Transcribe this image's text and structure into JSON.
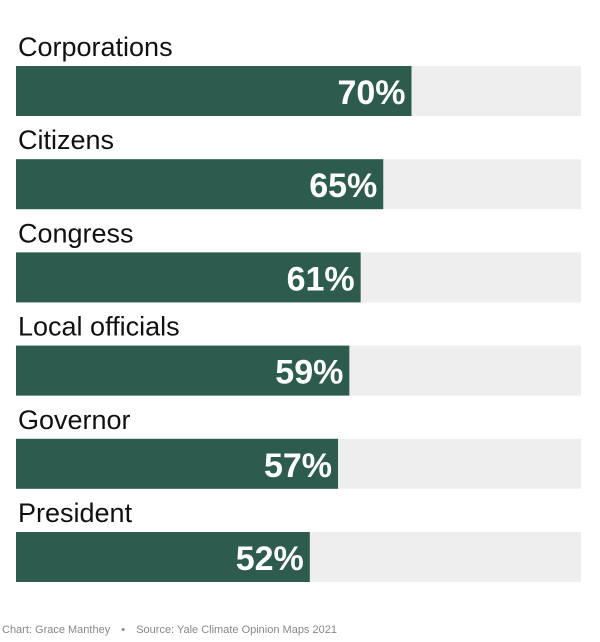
{
  "chart_data": {
    "type": "bar",
    "orientation": "horizontal",
    "categories": [
      "Corporations",
      "Citizens",
      "Congress",
      "Local officials",
      "Governor",
      "President"
    ],
    "values": [
      70,
      65,
      61,
      59,
      57,
      52
    ],
    "value_labels": [
      "70%",
      "65%",
      "61%",
      "59%",
      "57%",
      "52%"
    ],
    "xlim": [
      0,
      100
    ],
    "unit": "%",
    "title": "",
    "xlabel": "",
    "ylabel": "",
    "grid": false,
    "legend": "none",
    "colors": {
      "bar": "#2d5b4d",
      "track": "#eeeeee",
      "value_text": "#ffffff",
      "category_text": "#111111"
    }
  },
  "footer": {
    "credit": "Chart: Grace Manthey",
    "separator": "•",
    "source": "Source: Yale Climate Opinion Maps 2021"
  }
}
